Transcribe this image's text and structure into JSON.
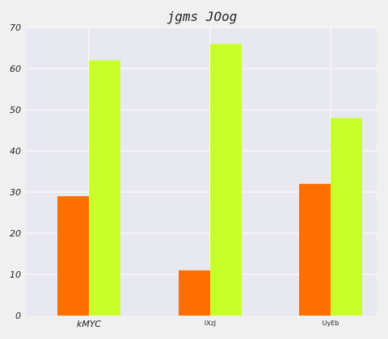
{
  "chart_data": {
    "type": "bar",
    "title": "jgms JOog",
    "xlabel": "",
    "ylabel": "",
    "categories": [
      "kMYC",
      "lXzJ",
      "UyEb"
    ],
    "series": [
      {
        "values": [
          29,
          11,
          32
        ],
        "color": "#ff6f00"
      },
      {
        "values": [
          62,
          66,
          48
        ],
        "color": "#c8ff2a"
      }
    ],
    "ylim": [
      0,
      70
    ],
    "yticks": [
      0,
      10,
      20,
      30,
      40,
      50,
      60,
      70
    ],
    "grid": true,
    "plot_background": "#e8e8f0",
    "page_background": "#f0f0f0",
    "legend": "none"
  }
}
